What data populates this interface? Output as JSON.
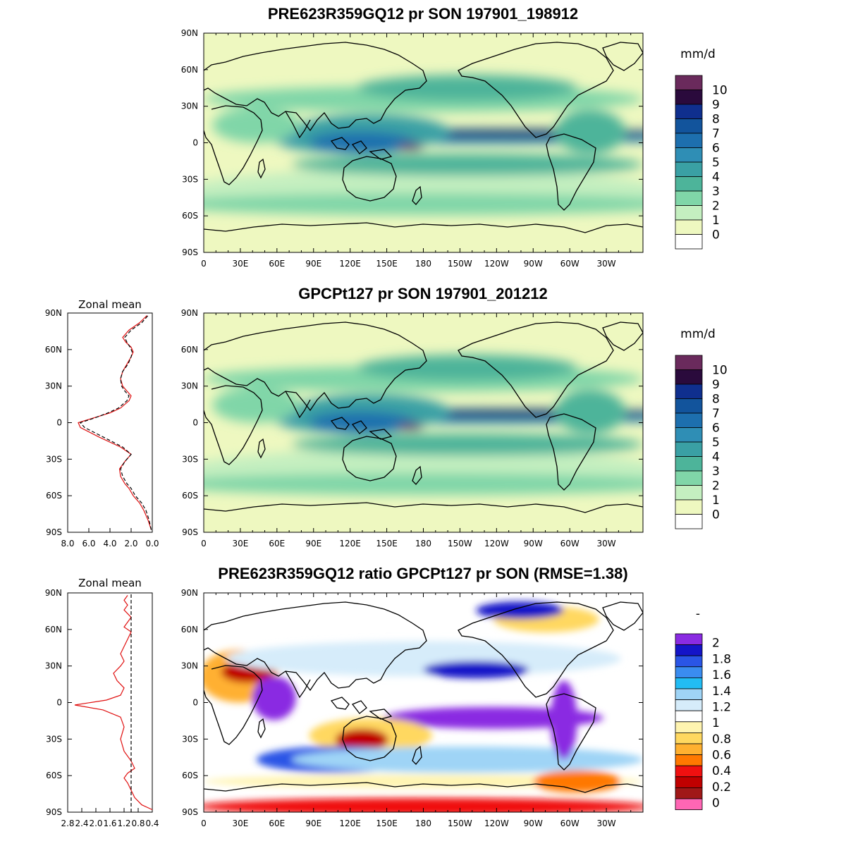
{
  "panels": [
    {
      "title": "PRE623R359GQ12 pr SON 197901_198912",
      "units": "mm/d",
      "colorbar": {
        "labels": [
          "10",
          "9",
          "8",
          "7",
          "6",
          "5",
          "4",
          "3",
          "2",
          "1",
          "0"
        ],
        "colors": [
          "#6a2a5c",
          "#2a0a3c",
          "#0f2f8e",
          "#12549c",
          "#1d6fae",
          "#2f8eb5",
          "#3aa0a4",
          "#4db49a",
          "#80d6a8",
          "#c4efc0",
          "#eef8c0",
          "#ffffff"
        ]
      },
      "chart_data": {
        "type": "heatmap",
        "field": "precipitation (pr)",
        "season": "SON",
        "xlim": [
          0,
          360
        ],
        "ylim": [
          -90,
          90
        ],
        "x_ticks": [
          "0",
          "30E",
          "60E",
          "90E",
          "120E",
          "150E",
          "180",
          "150W",
          "120W",
          "90W",
          "60W",
          "30W"
        ],
        "y_ticks": [
          "90N",
          "60N",
          "30N",
          "0",
          "30S",
          "60S",
          "90S"
        ]
      }
    },
    {
      "title": "GPCPt127 pr SON 197901_201212",
      "units": "mm/d",
      "colorbar": {
        "labels": [
          "10",
          "9",
          "8",
          "7",
          "6",
          "5",
          "4",
          "3",
          "2",
          "1",
          "0"
        ],
        "colors": [
          "#6a2a5c",
          "#2a0a3c",
          "#0f2f8e",
          "#12549c",
          "#1d6fae",
          "#2f8eb5",
          "#3aa0a4",
          "#4db49a",
          "#80d6a8",
          "#c4efc0",
          "#eef8c0",
          "#ffffff"
        ]
      },
      "chart_data": {
        "type": "heatmap",
        "field": "precipitation (pr)",
        "season": "SON",
        "xlim": [
          0,
          360
        ],
        "ylim": [
          -90,
          90
        ],
        "x_ticks": [
          "0",
          "30E",
          "60E",
          "90E",
          "120E",
          "150E",
          "180",
          "150W",
          "120W",
          "90W",
          "60W",
          "30W"
        ],
        "y_ticks": [
          "90N",
          "60N",
          "30N",
          "0",
          "30S",
          "60S",
          "90S"
        ]
      }
    },
    {
      "title": "PRE623R359GQ12 ratio GPCPt127 pr SON (RMSE=1.38)",
      "units": "-",
      "colorbar": {
        "labels": [
          "2",
          "1.8",
          "1.6",
          "1.4",
          "1.2",
          "1",
          "0.8",
          "0.6",
          "0.4",
          "0.2",
          "0"
        ],
        "colors": [
          "#8a2be2",
          "#1414c8",
          "#2a55e6",
          "#3a8cf0",
          "#22bcf4",
          "#9fd4f6",
          "#d6ecfa",
          "#ffffff",
          "#fff4b0",
          "#ffd860",
          "#ffb030",
          "#ff7800",
          "#f01010",
          "#c00000",
          "#a01818",
          "#ff66b4"
        ]
      },
      "chart_data": {
        "type": "heatmap",
        "field": "precipitation ratio",
        "season": "SON",
        "xlim": [
          0,
          360
        ],
        "ylim": [
          -90,
          90
        ],
        "x_ticks": [
          "0",
          "30E",
          "60E",
          "90E",
          "120E",
          "150E",
          "180",
          "150W",
          "120W",
          "90W",
          "60W",
          "30W"
        ],
        "y_ticks": [
          "90N",
          "60N",
          "30N",
          "0",
          "30S",
          "60S",
          "90S"
        ]
      }
    }
  ],
  "zonal_means": [
    {
      "title": "Zonal mean",
      "x_ticks": [
        "8.0",
        "6.0",
        "4.0",
        "2.0",
        "0.0"
      ],
      "y_ticks": [
        "90N",
        "60N",
        "30N",
        "0",
        "30S",
        "60S",
        "90S"
      ],
      "chart_data": {
        "type": "line",
        "xlim": [
          8,
          0
        ],
        "ylim": [
          -90,
          90
        ],
        "series": [
          {
            "color": "#e01010",
            "dash": false,
            "x": [
              0.1,
              0.4,
              0.8,
              1.2,
              1.8,
              2.2,
              2.6,
              3.0,
              3.1,
              2.6,
              2.0,
              3.0,
              5.0,
              6.8,
              7.0,
              5.5,
              4.0,
              3.0,
              2.2,
              2.0,
              2.4,
              2.8,
              3.0,
              2.8,
              2.4,
              2.0,
              1.8,
              2.0,
              2.5,
              2.8,
              2.2,
              1.2,
              0.5
            ],
            "y": [
              -88,
              -80,
              -72,
              -66,
              -60,
              -54,
              -50,
              -44,
              -38,
              -32,
              -26,
              -20,
              -12,
              -4,
              0,
              4,
              8,
              12,
              18,
              22,
              26,
              30,
              36,
              42,
              48,
              54,
              58,
              62,
              66,
              70,
              76,
              82,
              88
            ]
          },
          {
            "color": "#000000",
            "dash": true,
            "x": [
              0.1,
              0.3,
              0.6,
              1.0,
              1.6,
              2.0,
              2.4,
              2.8,
              3.0,
              2.6,
              2.0,
              2.8,
              4.6,
              6.4,
              6.8,
              5.4,
              4.2,
              3.2,
              2.4,
              2.2,
              2.6,
              2.9,
              3.0,
              2.8,
              2.3,
              2.0,
              1.9,
              2.1,
              2.4,
              2.6,
              2.0,
              1.0,
              0.4
            ],
            "y": [
              -88,
              -80,
              -72,
              -66,
              -60,
              -54,
              -50,
              -44,
              -38,
              -32,
              -26,
              -20,
              -12,
              -4,
              0,
              4,
              8,
              12,
              18,
              22,
              26,
              30,
              36,
              42,
              48,
              54,
              58,
              62,
              66,
              70,
              76,
              82,
              88
            ]
          }
        ]
      }
    },
    {
      "title": "Zonal mean",
      "x_ticks": [
        "2.8",
        "2.4",
        "2.0",
        "1.6",
        "1.2",
        "0.8",
        "0.4"
      ],
      "y_ticks": [
        "90N",
        "60N",
        "30N",
        "0",
        "30S",
        "60S",
        "90S"
      ],
      "chart_data": {
        "type": "line",
        "xlim": [
          2.8,
          0.4
        ],
        "ylim": [
          -90,
          90
        ],
        "series": [
          {
            "color": "#e01010",
            "dash": false,
            "x": [
              0.4,
              0.7,
              0.9,
              1.0,
              1.1,
              1.2,
              1.1,
              0.9,
              1.0,
              1.2,
              1.3,
              1.2,
              1.3,
              1.8,
              2.6,
              1.7,
              1.3,
              1.2,
              1.4,
              1.5,
              1.3,
              1.2,
              1.3,
              1.2,
              1.1,
              1.0,
              1.2,
              1.1,
              1.0,
              1.2,
              1.1,
              1.2,
              1.1
            ],
            "y": [
              -88,
              -84,
              -78,
              -72,
              -66,
              -62,
              -58,
              -54,
              -48,
              -40,
              -30,
              -20,
              -12,
              -6,
              -2,
              2,
              6,
              12,
              18,
              24,
              30,
              34,
              40,
              46,
              52,
              58,
              62,
              66,
              70,
              76,
              80,
              84,
              88
            ]
          },
          {
            "color": "#000000",
            "dash": true,
            "x": [
              1.0,
              1.0
            ],
            "y": [
              -90,
              90
            ]
          }
        ]
      }
    }
  ]
}
